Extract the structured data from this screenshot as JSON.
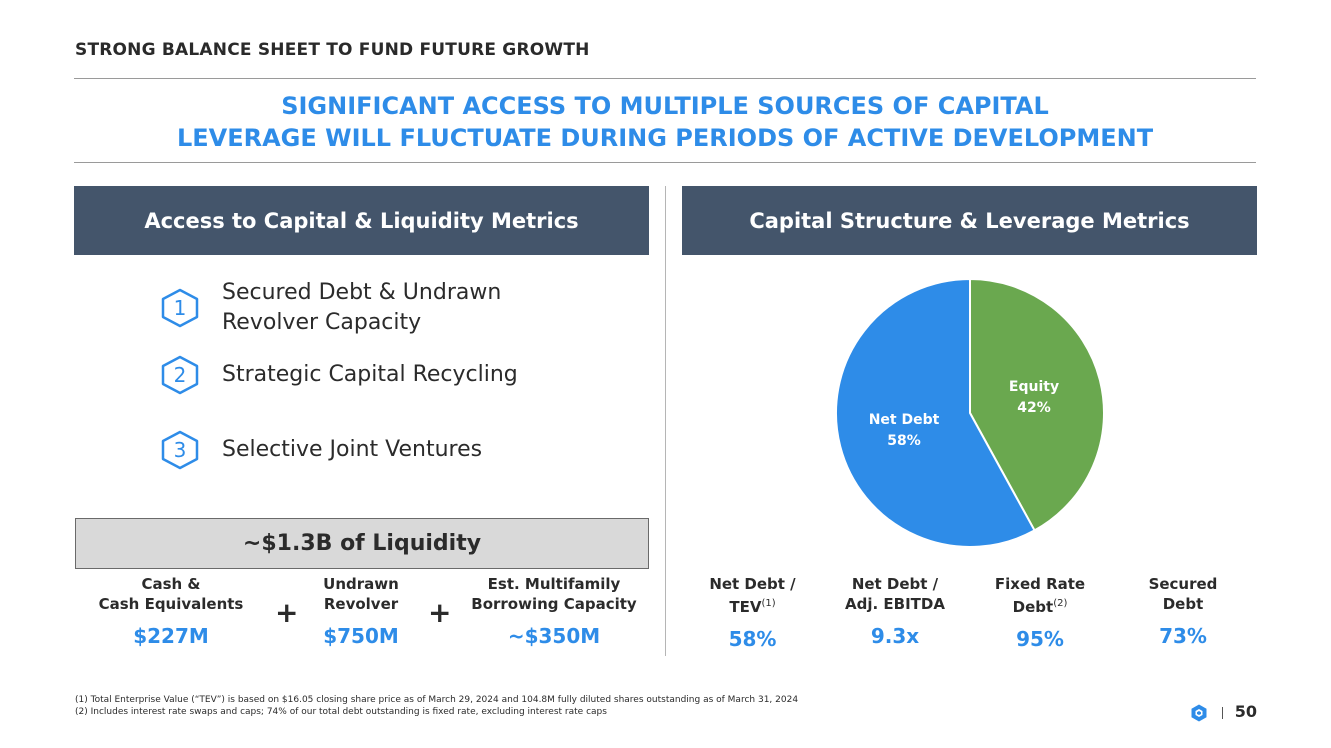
{
  "header": {
    "section_title": "STRONG BALANCE SHEET TO FUND FUTURE GROWTH",
    "headline_line1": "SIGNIFICANT ACCESS TO MULTIPLE SOURCES OF CAPITAL",
    "headline_line2": "LEVERAGE WILL FLUCTUATE DURING PERIODS OF ACTIVE DEVELOPMENT"
  },
  "left_panel": {
    "title": "Access to Capital & Liquidity Metrics",
    "items": [
      {
        "number": "1",
        "line1": "Secured Debt & Undrawn",
        "line2": "Revolver Capacity"
      },
      {
        "number": "2",
        "line1": "Strategic Capital Recycling",
        "line2": ""
      },
      {
        "number": "3",
        "line1": "Selective Joint Ventures",
        "line2": ""
      }
    ],
    "liquidity_total": "~$1.3B of Liquidity",
    "plus_sign": "+",
    "metrics": [
      {
        "label1": "Cash &",
        "label2": "Cash Equivalents",
        "value": "$227M"
      },
      {
        "label1": "Undrawn",
        "label2": "Revolver",
        "value": "$750M"
      },
      {
        "label1": "Est. Multifamily",
        "label2": "Borrowing Capacity",
        "value": "~$350M"
      }
    ]
  },
  "right_panel": {
    "title": "Capital Structure & Leverage Metrics",
    "metrics": [
      {
        "label1": "Net Debt /",
        "label2": "TEV",
        "sup": "(1)",
        "value": "58%"
      },
      {
        "label1": "Net Debt /",
        "label2": "Adj. EBITDA",
        "sup": "",
        "value": "9.3x"
      },
      {
        "label1": "Fixed Rate",
        "label2": "Debt",
        "sup": "(2)",
        "value": "95%"
      },
      {
        "label1": "Secured",
        "label2": "Debt",
        "sup": "",
        "value": "73%"
      }
    ]
  },
  "chart_data": {
    "type": "pie",
    "title": "",
    "slices": [
      {
        "name": "Equity",
        "value": 42,
        "label": "42%",
        "color": "#6aa84f"
      },
      {
        "name": "Net Debt",
        "value": 58,
        "label": "58%",
        "color": "#2e8ce8"
      }
    ]
  },
  "footnotes": {
    "note1": "(1) Total Enterprise Value (“TEV”) is based on $16.05 closing share price as of March 29, 2024 and 104.8M fully diluted shares outstanding as of March 31, 2024",
    "note2": "(2) Includes interest rate swaps and caps; 74% of our total debt outstanding is fixed rate, excluding interest rate caps"
  },
  "footer": {
    "page_number": "50",
    "logo_icon": "hexagon-logo-icon"
  },
  "colors": {
    "accent": "#2e8ce8",
    "panel_header": "#44556b",
    "equity": "#6aa84f"
  }
}
